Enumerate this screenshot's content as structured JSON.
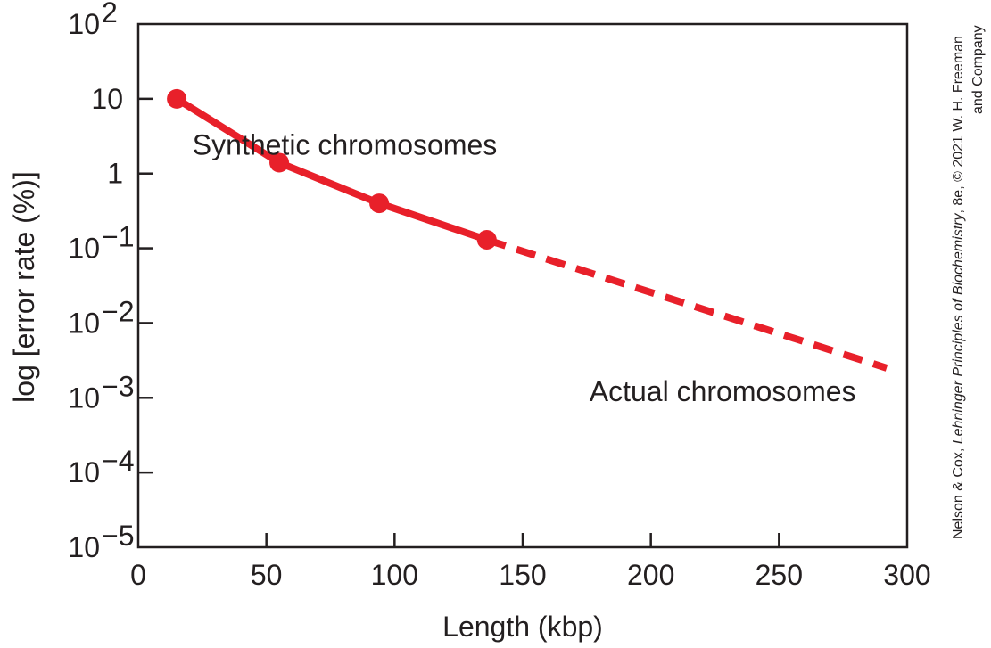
{
  "chart_data": {
    "type": "line",
    "xlabel": "Length (kbp)",
    "ylabel": "log [error rate (%)]",
    "xlim": [
      0,
      300
    ],
    "ylim": [
      1e-05,
      100
    ],
    "yscale": "log",
    "grid": false,
    "x_ticks": [
      {
        "value": 0,
        "label": "0"
      },
      {
        "value": 50,
        "label": "50"
      },
      {
        "value": 100,
        "label": "100"
      },
      {
        "value": 150,
        "label": "150"
      },
      {
        "value": 200,
        "label": "200"
      },
      {
        "value": 250,
        "label": "250"
      },
      {
        "value": 300,
        "label": "300"
      }
    ],
    "y_ticks": [
      {
        "value": 100,
        "base": "10",
        "exp": "2"
      },
      {
        "value": 10,
        "base": "10",
        "exp": ""
      },
      {
        "value": 1,
        "base": "1",
        "exp": ""
      },
      {
        "value": 0.1,
        "base": "10",
        "exp": "−1"
      },
      {
        "value": 0.01,
        "base": "10",
        "exp": "−2"
      },
      {
        "value": 0.001,
        "base": "10",
        "exp": "−3"
      },
      {
        "value": 0.0001,
        "base": "10",
        "exp": "−4"
      },
      {
        "value": 1e-05,
        "base": "10",
        "exp": "−5"
      }
    ],
    "series": [
      {
        "name": "Synthetic chromosomes",
        "style": "solid",
        "markers": true,
        "color": "#e8202a",
        "x": [
          15,
          55,
          94,
          136
        ],
        "y": [
          10,
          1.4,
          0.4,
          0.13
        ]
      },
      {
        "name": "Actual chromosomes",
        "style": "dashed",
        "markers": false,
        "color": "#e8202a",
        "x": [
          136,
          292
        ],
        "y": [
          0.13,
          0.0025
        ]
      }
    ],
    "annotations": [
      {
        "text": "Synthetic chromosomes",
        "x": 140,
        "y": 1.8
      },
      {
        "text": "Actual chromosomes",
        "x": 280,
        "y": 0.0009
      }
    ]
  },
  "credit": {
    "line1_prefix": "Nelson & Cox, ",
    "line1_title": "Lehninger Principles of Biochemistry",
    "line1_suffix": ", 8e, © 2021 W. H. Freeman",
    "line2": "and Company"
  }
}
